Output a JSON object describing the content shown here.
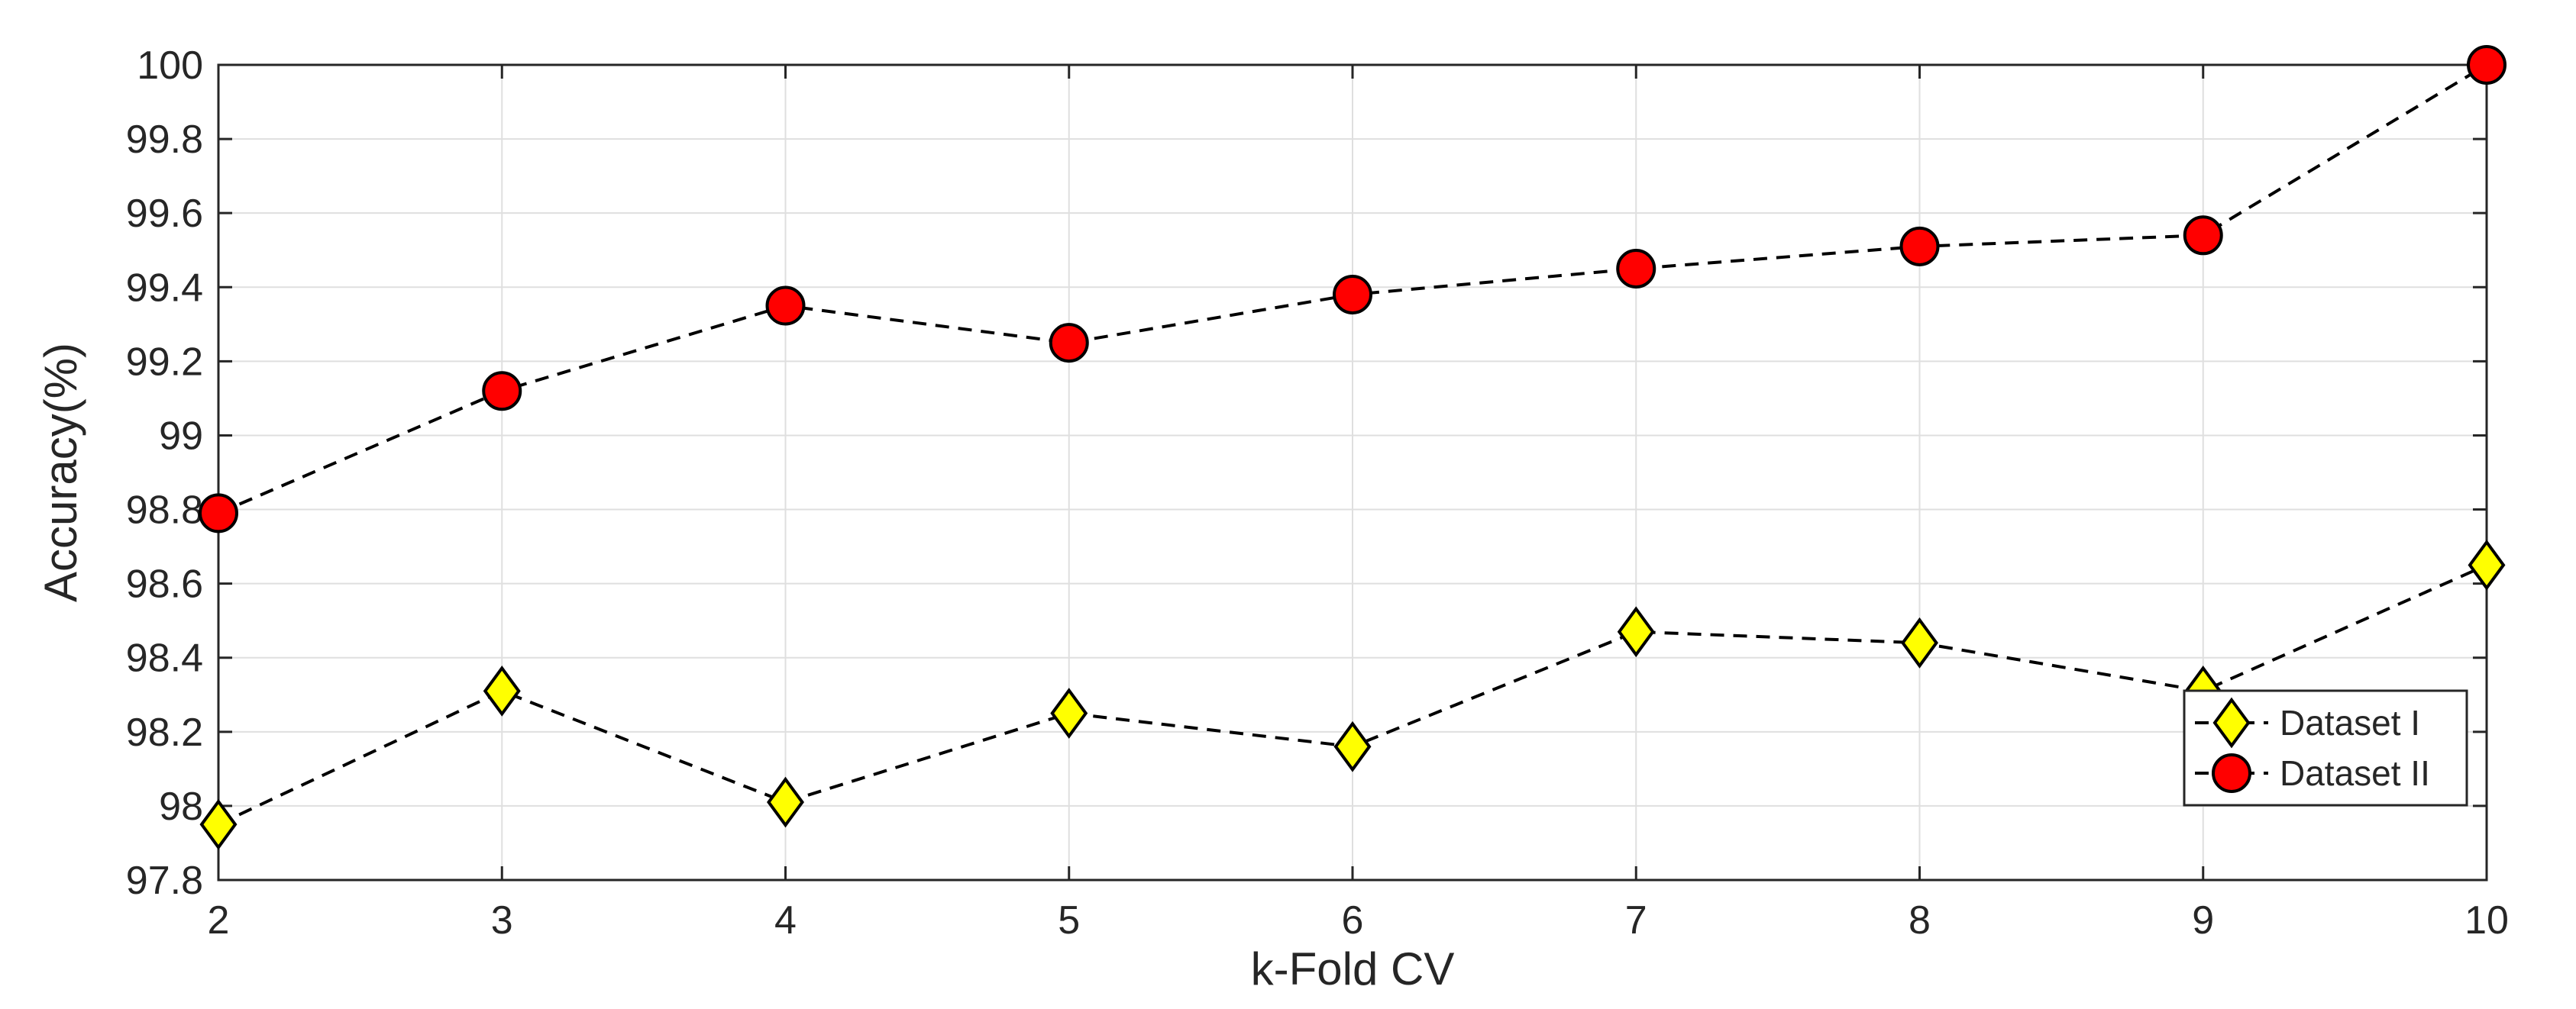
{
  "chart_data": {
    "type": "line",
    "title": "",
    "xlabel": "k-Fold CV",
    "ylabel": "Accuracy(%)",
    "x": [
      2,
      3,
      4,
      5,
      6,
      7,
      8,
      9,
      10
    ],
    "xlim": [
      2,
      10
    ],
    "ylim": [
      97.8,
      100
    ],
    "xticks": [
      "2",
      "3",
      "4",
      "5",
      "6",
      "7",
      "8",
      "9",
      "10"
    ],
    "yticks": [
      "97.8",
      "98",
      "98.2",
      "98.4",
      "98.6",
      "98.8",
      "99",
      "99.2",
      "99.4",
      "99.6",
      "99.8",
      "100"
    ],
    "ytick_values": [
      97.8,
      98.0,
      98.2,
      98.4,
      98.6,
      98.8,
      99.0,
      99.2,
      99.4,
      99.6,
      99.8,
      100.0
    ],
    "grid": true,
    "legend_position": "bottom-right",
    "series": [
      {
        "name": "Dataset I",
        "values": [
          97.95,
          98.31,
          98.01,
          98.25,
          98.16,
          98.47,
          98.44,
          98.31,
          98.65
        ],
        "marker": "diamond",
        "color": "#ffff00",
        "line_style": "dashed"
      },
      {
        "name": "Dataset II",
        "values": [
          98.79,
          99.12,
          99.35,
          99.25,
          99.38,
          99.45,
          99.51,
          99.54,
          100.0
        ],
        "marker": "circle",
        "color": "#ff0000",
        "line_style": "dashed"
      }
    ]
  }
}
